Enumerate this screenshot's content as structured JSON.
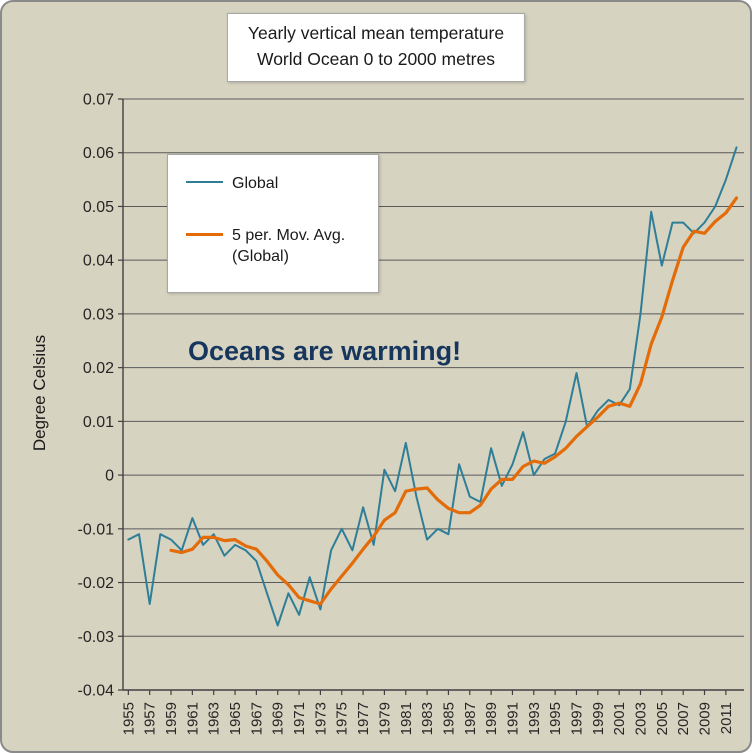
{
  "title": {
    "line1": "Yearly vertical mean temperature",
    "line2": "World Ocean 0 to 2000 metres"
  },
  "y_axis_title": "Degree Celsius",
  "annotation": {
    "text": "Oceans are warming!",
    "color": "#17365d"
  },
  "legend": {
    "items": [
      {
        "label": "Global",
        "color": "#2e7e97",
        "thickness": 2
      },
      {
        "label": "5 per. Mov. Avg. (Global)",
        "color": "#e36c09",
        "thickness": 3
      }
    ]
  },
  "chart_data": {
    "type": "line",
    "title": "Yearly vertical mean temperature World Ocean 0 to 2000 metres",
    "xlabel": "",
    "ylabel": "Degree Celsius",
    "xlim": [
      1954.5,
      2012.7
    ],
    "ylim": [
      -0.04,
      0.07
    ],
    "grid": true,
    "grid_color": "#595959",
    "axis_color": "#404040",
    "background_color": "#d7d3c1",
    "legend_position": "upper-left",
    "x_tick_labels": [
      "1955",
      "1957",
      "1959",
      "1961",
      "1963",
      "1965",
      "1967",
      "1969",
      "1971",
      "1973",
      "1975",
      "1977",
      "1979",
      "1981",
      "1983",
      "1985",
      "1987",
      "1989",
      "1991",
      "1993",
      "1995",
      "1997",
      "1999",
      "2001",
      "2003",
      "2005",
      "2007",
      "2009",
      "2011"
    ],
    "y_tick_values": [
      0.07,
      0.06,
      0.05,
      0.04,
      0.03,
      0.02,
      0.01,
      0,
      -0.01,
      -0.02,
      -0.03,
      -0.04
    ],
    "y_tick_labels": [
      "0.07",
      "0.06",
      "0.05",
      "0.04",
      "0.03",
      "0.02",
      "0.01",
      "0",
      "-0.01",
      "-0.02",
      "-0.03",
      "-0.04"
    ],
    "series": [
      {
        "name": "Global",
        "color": "#2e7e97",
        "stroke_width": 2,
        "x_start": 1955,
        "x_step": 1,
        "values": [
          -0.012,
          -0.011,
          -0.024,
          -0.011,
          -0.012,
          -0.014,
          -0.008,
          -0.013,
          -0.011,
          -0.015,
          -0.013,
          -0.014,
          -0.016,
          -0.022,
          -0.028,
          -0.022,
          -0.026,
          -0.019,
          -0.025,
          -0.014,
          -0.01,
          -0.014,
          -0.006,
          -0.013,
          0.001,
          -0.003,
          0.006,
          -0.004,
          -0.012,
          -0.01,
          -0.011,
          0.002,
          -0.004,
          -0.005,
          0.005,
          -0.002,
          0.002,
          0.008,
          0.0,
          0.003,
          0.004,
          0.01,
          0.019,
          0.009,
          0.012,
          0.014,
          0.013,
          0.016,
          0.03,
          0.049,
          0.039,
          0.047,
          0.047,
          0.045,
          0.047,
          0.05,
          0.055,
          0.061
        ]
      },
      {
        "name": "5 per. Mov. Avg. (Global)",
        "color": "#e36c09",
        "stroke_width": 3.2,
        "x_start": 1959,
        "x_step": 1,
        "values": [
          -0.014,
          -0.0144,
          -0.0138,
          -0.0116,
          -0.0116,
          -0.0122,
          -0.012,
          -0.0132,
          -0.0138,
          -0.016,
          -0.0186,
          -0.0204,
          -0.0228,
          -0.0234,
          -0.024,
          -0.0212,
          -0.0188,
          -0.0164,
          -0.0138,
          -0.0114,
          -0.0084,
          -0.007,
          -0.003,
          -0.0026,
          -0.0024,
          -0.0046,
          -0.0062,
          -0.007,
          -0.007,
          -0.0056,
          -0.0026,
          -0.0008,
          -0.0008,
          0.0016,
          0.0026,
          0.0022,
          0.0034,
          0.005,
          0.0072,
          0.009,
          0.0108,
          0.0128,
          0.0134,
          0.0128,
          0.017,
          0.0244,
          0.0294,
          0.0362,
          0.0424,
          0.0454,
          0.045,
          0.0472,
          0.0488,
          0.0516
        ]
      }
    ]
  }
}
